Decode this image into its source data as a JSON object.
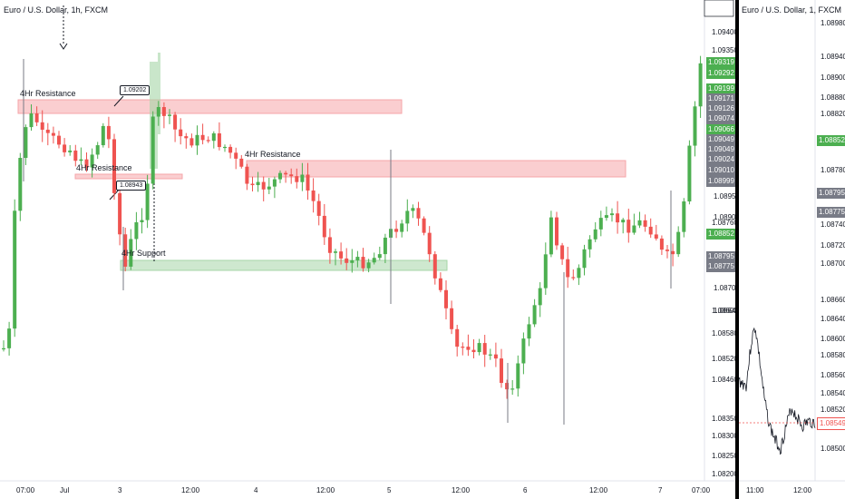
{
  "left_chart": {
    "title": "Euro / U.S. Dollar, 1h, FXCM",
    "price_ticks": [
      "1.09400",
      "1.09350",
      "1.09250",
      "1.08880",
      "1.08820",
      "1.08760",
      "1.08600",
      "1.08580",
      "1.08520",
      "1.08460",
      "1.08350",
      "1.08300",
      "1.08250",
      "1.08200"
    ],
    "time_ticks": [
      "07:00",
      "Jul",
      "3",
      "12:00",
      "4",
      "12:00",
      "5",
      "12:00",
      "6",
      "12:00",
      "7",
      "07:00"
    ],
    "tags": [
      {
        "text": "1.09319",
        "color": "#4caf50"
      },
      {
        "text": "1.09292",
        "color": "#4caf50"
      },
      {
        "text": "1.09199",
        "color": "#4caf50"
      },
      {
        "text": "1.09171",
        "color": "#787b86"
      },
      {
        "text": "1.09126",
        "color": "#787b86"
      },
      {
        "text": "1.09074",
        "color": "#787b86"
      },
      {
        "text": "1.09066",
        "color": "#4caf50"
      },
      {
        "text": "1.09049",
        "color": "#787b86"
      },
      {
        "text": "1.09049",
        "color": "#787b86"
      },
      {
        "text": "1.09024",
        "color": "#787b86"
      },
      {
        "text": "1.09010",
        "color": "#787b86"
      },
      {
        "text": "1.08999",
        "color": "#787b86"
      },
      {
        "text": "1.08950",
        "color": "none"
      },
      {
        "text": "1.08900",
        "color": "none"
      },
      {
        "text": "1.08852",
        "color": "#4caf50"
      },
      {
        "text": "1.08795",
        "color": "#787b86"
      },
      {
        "text": "1.08775",
        "color": "#787b86"
      },
      {
        "text": "1.08700",
        "color": "none"
      },
      {
        "text": "1.08640",
        "color": "none"
      }
    ],
    "zones": [
      {
        "label": "4Hr Resistance",
        "color": "#f6a5a9"
      },
      {
        "label": "4Hr Resistance",
        "color": "#f6a5a9"
      },
      {
        "label": "4Hr Resistance",
        "color": "#f6a5a9"
      },
      {
        "label": "4Hr Support",
        "color": "#a5d6a7"
      }
    ],
    "callouts": [
      "1.09202",
      "1.08943"
    ]
  },
  "right_chart": {
    "title": "Euro / U.S. Dollar, 1, FXCM",
    "price_ticks": [
      "1.08980",
      "1.08940",
      "1.08900",
      "1.08880",
      "1.08820",
      "1.08780",
      "1.08740",
      "1.08720",
      "1.08700",
      "1.08660",
      "1.08640",
      "1.08600",
      "1.08580",
      "1.08560",
      "1.08540",
      "1.08520",
      "1.08500"
    ],
    "tags": [
      {
        "text": "1.08852",
        "color": "#4caf50"
      },
      {
        "text": "1.08795",
        "color": "#787b86"
      },
      {
        "text": "1.08775",
        "color": "#787b86"
      },
      {
        "text": "1.08549",
        "color": "#ef5350"
      }
    ],
    "time_ticks": [
      "11:00",
      "12:00"
    ]
  },
  "colors": {
    "up": "#4caf50",
    "down": "#ef5350",
    "grid": "#f0f3fa"
  }
}
